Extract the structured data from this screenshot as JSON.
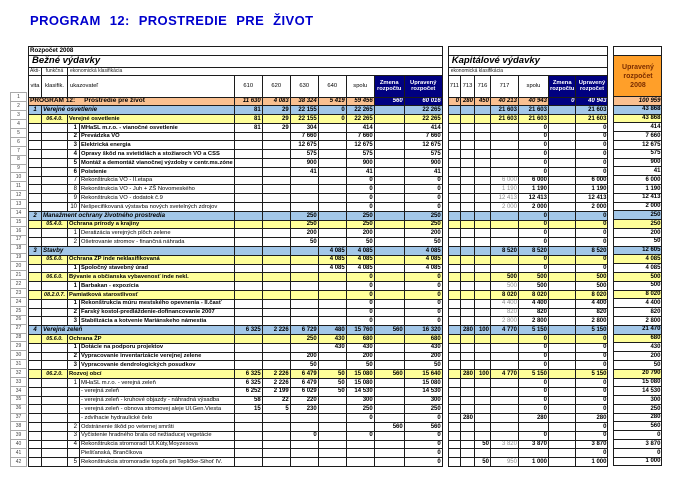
{
  "title": "PROGRAM 12: PROSTREDIE PRE ŽIVOT",
  "header": {
    "band": "Rozpočet 2008",
    "bezne_title": "Bežné výdavky",
    "kapital_title": "Kapitálové výdavky",
    "eko_klasifikacia": "ekonomická klasifikácia",
    "aktivita_top": "Akti-",
    "aktivita_bottom": "vita",
    "funkcna_top": "funkčná",
    "funkcna_bottom": "klasifik.",
    "ukazovatel": "ukazovateľ",
    "bezne_cols": [
      "610",
      "620",
      "630",
      "640",
      "spolu"
    ],
    "kapital_cols": [
      "711",
      "713",
      "716",
      "717",
      "spolu"
    ],
    "zmena": "Zmena rozpočtu",
    "upraveny": "Upravený rozpočet",
    "total_header": "Upravený rozpočet 2008"
  },
  "colors": {
    "title_blue": "#0000CD",
    "header_yellow": "#FFFFCC",
    "funk_yellow": "#FFFF99",
    "activity_blue": "#A3C7E8",
    "program_peach": "#FAC090",
    "navy": "#000080",
    "total_orange": "#FF9F29"
  },
  "rows": [
    {
      "n": "1",
      "style": "program",
      "label": "PROGRAM 12:     Prostredie pre život",
      "b": [
        "11 630",
        "4 083",
        "38 324",
        "5 419",
        "59 456",
        "560",
        "60 016"
      ],
      "k": [
        "0",
        "280",
        "450",
        "40 213",
        "40 943",
        "0",
        "40 943"
      ],
      "t": "100 959"
    },
    {
      "n": "2",
      "style": "activity",
      "akt": "1",
      "label": "Verejné osvetlenie",
      "b": [
        "81",
        "29",
        "22 155",
        "0",
        "22 265",
        "",
        "22 265"
      ],
      "k": [
        "",
        "",
        "",
        "21 603",
        "21 603",
        "",
        "21 603"
      ],
      "t": "43 868"
    },
    {
      "n": "3",
      "style": "funk",
      "fk": "06.4.0.",
      "label": "Verejné osvetlenie",
      "b": [
        "81",
        "29",
        "22 155",
        "0",
        "22 265",
        "",
        "22 265"
      ],
      "k": [
        "",
        "",
        "",
        "21 603",
        "21 603",
        "",
        "21 603"
      ],
      "t": "43 868"
    },
    {
      "n": "4",
      "style": "itemb",
      "item": "1",
      "label": "MHaSL m.r.o. - vianočné osvetlenie",
      "b": [
        "81",
        "29",
        "304",
        "",
        "414",
        "",
        "414"
      ],
      "k": [
        "",
        "",
        "",
        "",
        "0",
        "",
        "0"
      ],
      "t": "414"
    },
    {
      "n": "5",
      "style": "itemb",
      "item": "2",
      "label": "Prevádzka VO",
      "b": [
        "",
        "",
        "7 660",
        "",
        "7 660",
        "",
        "7 660"
      ],
      "k": [
        "",
        "",
        "",
        "",
        "0",
        "",
        "0"
      ],
      "t": "7 660"
    },
    {
      "n": "6",
      "style": "itemb",
      "item": "3",
      "label": "Elektrická energia",
      "b": [
        "",
        "",
        "12 675",
        "",
        "12 675",
        "",
        "12 675"
      ],
      "k": [
        "",
        "",
        "",
        "",
        "0",
        "",
        "0"
      ],
      "t": "12 675"
    },
    {
      "n": "7",
      "style": "itemb",
      "item": "4",
      "label": "Opravy škôd na svietidlách a stožiaroch VO a CSS",
      "b": [
        "",
        "",
        "575",
        "",
        "575",
        "",
        "575"
      ],
      "k": [
        "",
        "",
        "",
        "",
        "0",
        "",
        "0"
      ],
      "t": "575"
    },
    {
      "n": "8",
      "style": "itemb",
      "item": "5",
      "label": "Montáž a demontáž vianočnej výzdoby v centr.ms.zóne",
      "b": [
        "",
        "",
        "900",
        "",
        "900",
        "",
        "900"
      ],
      "k": [
        "",
        "",
        "",
        "",
        "0",
        "",
        "0"
      ],
      "t": "900"
    },
    {
      "n": "9",
      "style": "itemb",
      "item": "6",
      "label": "Poistenie",
      "b": [
        "",
        "",
        "41",
        "",
        "41",
        "",
        "41"
      ],
      "k": [
        "",
        "",
        "",
        "",
        "0",
        "",
        "0"
      ],
      "t": "41"
    },
    {
      "n": "10",
      "style": "item",
      "item": "7",
      "label": "Rekonštrukcia VO - II.etapa",
      "b": [
        "",
        "",
        "",
        "",
        "0",
        "",
        "0"
      ],
      "k": [
        "",
        "",
        "",
        "6 000",
        "6 000",
        "",
        "6 000"
      ],
      "g": true,
      "t": "6 000"
    },
    {
      "n": "11",
      "style": "item",
      "item": "8",
      "label": "Rekonštrukcia VO - Juh + ZŠ Novomeského",
      "b": [
        "",
        "",
        "",
        "",
        "0",
        "",
        "0"
      ],
      "k": [
        "",
        "",
        "",
        "1 190",
        "1 190",
        "",
        "1 190"
      ],
      "g": true,
      "t": "1 190"
    },
    {
      "n": "12",
      "style": "item",
      "item": "9",
      "label": "Rekonštrukcia VO - dodatok č.9",
      "b": [
        "",
        "",
        "",
        "",
        "0",
        "",
        "0"
      ],
      "k": [
        "",
        "",
        "",
        "12 413",
        "12 413",
        "",
        "12 413"
      ],
      "g": true,
      "t": "12 413"
    },
    {
      "n": "13",
      "style": "item",
      "item": "10",
      "label": "Nešpecifikovaná výstavba nových svetelných zdrojov",
      "b": [
        "",
        "",
        "",
        "",
        "0",
        "",
        "0"
      ],
      "k": [
        "",
        "",
        "",
        "2 000",
        "2 000",
        "",
        "2 000"
      ],
      "g": true,
      "t": "2 000"
    },
    {
      "n": "14",
      "style": "activity",
      "akt": "2",
      "label": "Manažment ochrany životného prostredia",
      "b": [
        "",
        "",
        "250",
        "",
        "250",
        "",
        "250"
      ],
      "k": [
        "",
        "",
        "",
        "",
        "0",
        "",
        "0"
      ],
      "t": "250"
    },
    {
      "n": "15",
      "style": "funk",
      "fk": "05.4.0.",
      "label": "Ochrana prírody a krajiny",
      "b": [
        "",
        "",
        "250",
        "",
        "250",
        "",
        "250"
      ],
      "k": [
        "",
        "",
        "",
        "",
        "0",
        "",
        "0"
      ],
      "t": "250"
    },
    {
      "n": "16",
      "style": "item",
      "item": "1",
      "label": "Deratizácia verejných plôch zelene",
      "b": [
        "",
        "",
        "200",
        "",
        "200",
        "",
        "200"
      ],
      "k": [
        "",
        "",
        "",
        "",
        "0",
        "",
        "0"
      ],
      "t": "200"
    },
    {
      "n": "17",
      "style": "item",
      "item": "2",
      "label": "Ošetrovanie stromov - finančná náhrada",
      "b": [
        "",
        "",
        "50",
        "",
        "50",
        "",
        "50"
      ],
      "k": [
        "",
        "",
        "",
        "",
        "0",
        "",
        "0"
      ],
      "t": "50"
    },
    {
      "n": "18",
      "style": "activity",
      "akt": "3",
      "label": "Stavby",
      "b": [
        "",
        "",
        "",
        "4 085",
        "4 085",
        "",
        "4 085"
      ],
      "k": [
        "",
        "",
        "",
        "8 520",
        "8 520",
        "",
        "8 520"
      ],
      "t": "12 605"
    },
    {
      "n": "19",
      "style": "funk",
      "fk": "05.6.0.",
      "label": "Ochrana ŽP inde neklasifikovaná",
      "b": [
        "",
        "",
        "",
        "4 085",
        "4 085",
        "",
        "4 085"
      ],
      "k": [
        "",
        "",
        "",
        "",
        "0",
        "",
        "0"
      ],
      "t": "4 085"
    },
    {
      "n": "20",
      "style": "itemb",
      "item": "1",
      "label": "Spoločný stavebný úrad",
      "b": [
        "",
        "",
        "",
        "4 085",
        "4 085",
        "",
        "4 085"
      ],
      "k": [
        "",
        "",
        "",
        "",
        "0",
        "",
        "0"
      ],
      "t": "4 085"
    },
    {
      "n": "21",
      "style": "funk",
      "fk": "06.6.0.",
      "label": "Bývanie a občianska vybavenosť inde nekl.",
      "b": [
        "",
        "",
        "",
        "",
        "0",
        "",
        "0"
      ],
      "k": [
        "",
        "",
        "",
        "500",
        "500",
        "",
        "500"
      ],
      "t": "500"
    },
    {
      "n": "22",
      "style": "itemb",
      "item": "1",
      "label": "Barbakan - expozícia",
      "b": [
        "",
        "",
        "",
        "",
        "0",
        "",
        "0"
      ],
      "k": [
        "",
        "",
        "",
        "500",
        "500",
        "",
        "500"
      ],
      "g": true,
      "t": "500"
    },
    {
      "n": "23",
      "style": "funk",
      "fk": "08.2.0.7.",
      "label": "Pamiatková starostlivosť",
      "b": [
        "",
        "",
        "",
        "",
        "0",
        "",
        "0"
      ],
      "k": [
        "",
        "",
        "",
        "8 020",
        "8 020",
        "",
        "8 020"
      ],
      "t": "8 020"
    },
    {
      "n": "24",
      "style": "itemb",
      "item": "1",
      "label": "Rekonštrukcia múru mestského opevnenia - II.časť",
      "b": [
        "",
        "",
        "",
        "",
        "0",
        "",
        "0"
      ],
      "k": [
        "",
        "",
        "",
        "4 400",
        "4 400",
        "",
        "4 400"
      ],
      "g": true,
      "t": "4 400"
    },
    {
      "n": "25",
      "style": "itemb",
      "item": "2",
      "label": "Farský kostol-predláždenie-dofinancovanie 2007",
      "b": [
        "",
        "",
        "",
        "",
        "0",
        "",
        "0"
      ],
      "k": [
        "",
        "",
        "",
        "820",
        "820",
        "",
        "820"
      ],
      "g": true,
      "t": "820"
    },
    {
      "n": "26",
      "style": "itemb",
      "item": "3",
      "label": "Stabilizácia a kotvenie Mariánskeho námestia",
      "b": [
        "",
        "",
        "",
        "",
        "0",
        "",
        "0"
      ],
      "k": [
        "",
        "",
        "",
        "2 800",
        "2 800",
        "",
        "2 800"
      ],
      "g": true,
      "t": "2 800"
    },
    {
      "n": "27",
      "style": "activity",
      "akt": "4",
      "label": "Verejná zeleň",
      "b": [
        "6 325",
        "2 226",
        "6 729",
        "480",
        "15 760",
        "560",
        "16 320"
      ],
      "k": [
        "",
        "280",
        "100",
        "4 770",
        "5 150",
        "",
        "5 150"
      ],
      "t": "21 470"
    },
    {
      "n": "28",
      "style": "funk",
      "fk": "05.6.0.",
      "label": "Ochrana ŽP",
      "b": [
        "",
        "",
        "250",
        "430",
        "680",
        "",
        "680"
      ],
      "k": [
        "",
        "",
        "",
        "",
        "0",
        "",
        "0"
      ],
      "t": "680"
    },
    {
      "n": "29",
      "style": "itemb",
      "item": "1",
      "label": "Dotácie na podporu projektov",
      "b": [
        "",
        "",
        "",
        "430",
        "430",
        "",
        "430"
      ],
      "k": [
        "",
        "",
        "",
        "",
        "0",
        "",
        "0"
      ],
      "t": "430"
    },
    {
      "n": "30",
      "style": "itemb",
      "item": "2",
      "label": "Vypracovanie inventarizácie verejnej zelene",
      "b": [
        "",
        "",
        "200",
        "",
        "200",
        "",
        "200"
      ],
      "k": [
        "",
        "",
        "",
        "",
        "0",
        "",
        "0"
      ],
      "t": "200"
    },
    {
      "n": "31",
      "style": "itemb",
      "item": "3",
      "label": "Vypracovanie dendrologických posudkov",
      "b": [
        "",
        "",
        "50",
        "",
        "50",
        "",
        "50"
      ],
      "k": [
        "",
        "",
        "",
        "",
        "0",
        "",
        "0"
      ],
      "t": "50"
    },
    {
      "n": "32",
      "style": "funk",
      "fk": "06.2.0.",
      "label": "Rozvoj obcí",
      "b": [
        "6 325",
        "2 226",
        "6 479",
        "50",
        "15 080",
        "560",
        "15 640"
      ],
      "k": [
        "",
        "280",
        "100",
        "4 770",
        "5 150",
        "",
        "5 150"
      ],
      "t": "20 790"
    },
    {
      "n": "33",
      "style": "item",
      "item": "1",
      "label": "MHaSL m.r.o. - verejná zeleň",
      "b": [
        "6 325",
        "2 226",
        "6 479",
        "50",
        "15 080",
        "",
        "15 080"
      ],
      "k": [
        "",
        "",
        "",
        "",
        "0",
        "",
        "0"
      ],
      "t": "15 080"
    },
    {
      "n": "34",
      "style": "item",
      "item": "",
      "label": "- verejná zeleň",
      "b": [
        "6 252",
        "2 199",
        "6 029",
        "50",
        "14 530",
        "",
        "14 530"
      ],
      "k": [
        "",
        "",
        "",
        "",
        "0",
        "",
        "0"
      ],
      "t": "14 530"
    },
    {
      "n": "35",
      "style": "item",
      "item": "",
      "label": "- verejná zeleň - kruhové objazdy - náhradná výsadba",
      "b": [
        "58",
        "22",
        "220",
        "",
        "300",
        "",
        "300"
      ],
      "k": [
        "",
        "",
        "",
        "",
        "0",
        "",
        "0"
      ],
      "t": "300"
    },
    {
      "n": "36",
      "style": "item",
      "item": "",
      "label": "- verejná zeleň - obnova stromovej aleje Ul.Gen.Viesta",
      "b": [
        "15",
        "5",
        "230",
        "",
        "250",
        "",
        "250"
      ],
      "k": [
        "",
        "",
        "",
        "",
        "0",
        "",
        "0"
      ],
      "t": "250"
    },
    {
      "n": "37",
      "style": "item",
      "item": "",
      "label": "- zdvíhacie hydraulické čelo",
      "b": [
        "",
        "",
        "",
        "",
        "0",
        "",
        "0"
      ],
      "k": [
        "",
        "280",
        "",
        "",
        "280",
        "",
        "280"
      ],
      "t": "280"
    },
    {
      "n": "38",
      "style": "item",
      "item": "2",
      "label": "Odstránenie škôd po veternej smršti",
      "b": [
        "",
        "",
        "",
        "",
        "",
        "560",
        "560"
      ],
      "k": [
        "",
        "",
        "",
        "",
        "",
        "",
        "0"
      ],
      "t": "560"
    },
    {
      "n": "39",
      "style": "item",
      "item": "3",
      "label": "Vyčistenie hradného brala od nežiaducej vegetácie",
      "b": [
        "",
        "",
        "0",
        "",
        "0",
        "",
        "0"
      ],
      "k": [
        "",
        "",
        "",
        "",
        "0",
        "",
        "0"
      ],
      "t": "0"
    },
    {
      "n": "40",
      "style": "item",
      "item": "4",
      "label": "Rekonštrukcia stromoradí Ul.Kúty,Moyzesova",
      "b": [
        "",
        "",
        "",
        "",
        "",
        "",
        "0"
      ],
      "k": [
        "",
        "",
        "50",
        "3 820",
        "3 870",
        "",
        "3 870"
      ],
      "g": true,
      "t": "3 870"
    },
    {
      "n": "41",
      "style": "item",
      "item": "",
      "label": "Piešťanská, Brančíkova",
      "b": [
        "",
        "",
        "",
        "",
        "",
        "",
        "0"
      ],
      "k": [
        "",
        "",
        "",
        "",
        "",
        "",
        "0"
      ],
      "t": "0"
    },
    {
      "n": "42",
      "style": "item",
      "item": "5",
      "label": "Rekonštrukcia stromoradie topoľa pri Tepličke-Sihoť IV.",
      "b": [
        "",
        "",
        "",
        "",
        "",
        "",
        "0"
      ],
      "k": [
        "",
        "",
        "50",
        "950",
        "1 000",
        "",
        "1 000"
      ],
      "g": true,
      "t": "1 000"
    }
  ]
}
